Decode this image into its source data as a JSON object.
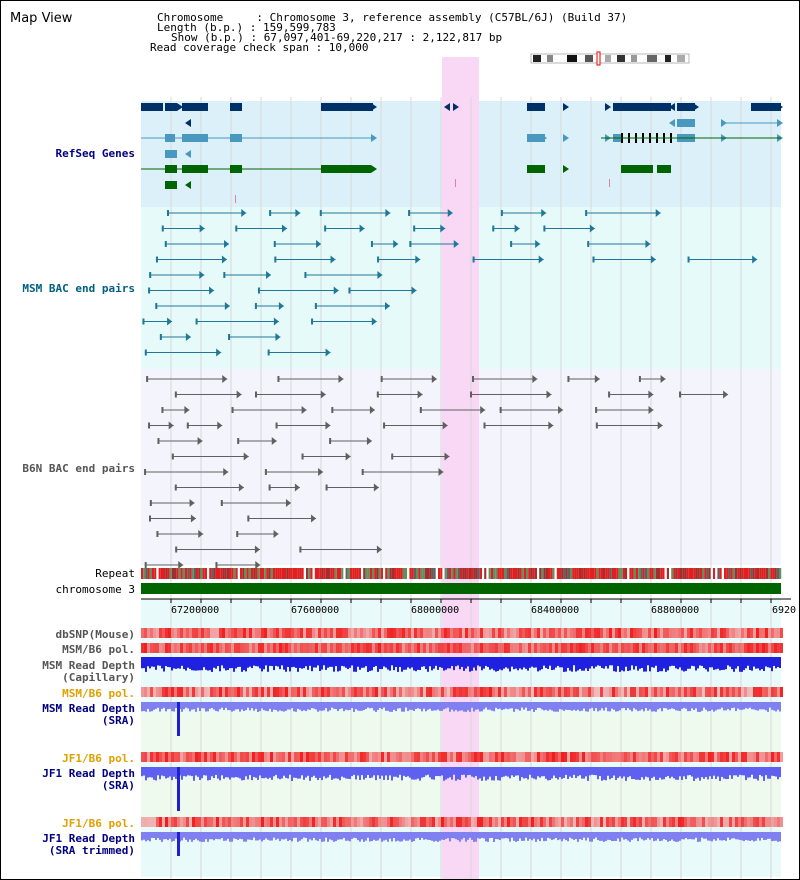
{
  "header": {
    "title": "Map View",
    "chromosome": "Chromosome     : Chromosome 3, reference assembly (C57BL/6J) (Build 37)",
    "length": "Length (b.p.) : 159,599,783",
    "show": "Show (b.p.) : 67,097,401-69,220,217 : 2,122,817 bp",
    "coverage": "Read coverage check span : 10,000"
  },
  "tracks": {
    "refseq": "RefSeq Genes",
    "msm_bac": "MSM BAC end pairs",
    "b6n_bac": "B6N BAC end pairs",
    "repeat": "Repeat",
    "chromosome": "chromosome 3",
    "dbsnp": "dbSNP(Mouse)",
    "msm_b6_pol": "MSM/B6 pol.",
    "msm_depth_cap_1": "MSM Read Depth",
    "msm_depth_cap_2": "(Capillary)",
    "msm_b6_pol_2": "MSM/B6 pol.",
    "msm_depth_sra_1": "MSM Read Depth",
    "msm_depth_sra_2": "(SRA)",
    "jf1_b6_pol": "JF1/B6 pol.",
    "jf1_depth_sra_1": "JF1 Read Depth",
    "jf1_depth_sra_2": "(SRA)",
    "jf1_b6_pol_2": "JF1/B6 pol.",
    "jf1_depth_trim_1": "JF1 Read Depth",
    "jf1_depth_trim_2": "(SRA trimmed)"
  },
  "axis": {
    "ticks": [
      "67200000",
      "67600000",
      "68000000",
      "68400000",
      "68800000",
      "6920"
    ]
  },
  "colors": {
    "refseq_bg": "#dcf0fa",
    "msm_label": "#006080",
    "refseq_label": "#000080",
    "orange_label": "#e0a000",
    "highlight": "#f8d8f4",
    "gene_dark": "#003068",
    "gene_mid": "#4898c0",
    "gene_green": "#006400"
  }
}
